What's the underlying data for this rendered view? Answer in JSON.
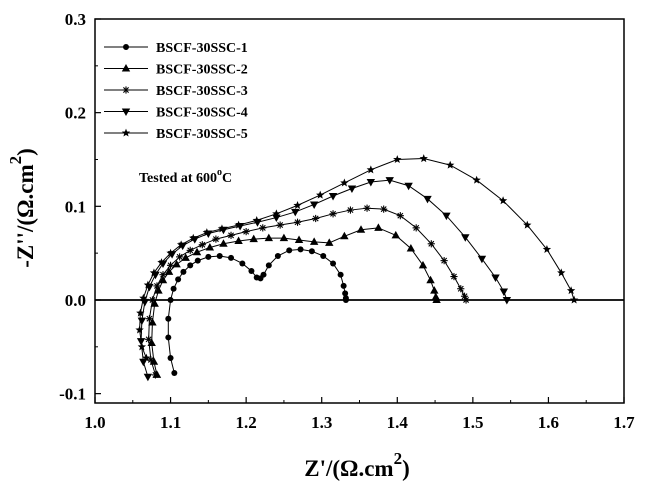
{
  "chart_data": {
    "type": "scatter",
    "xlabel": "Z'/(Ω.cm2)",
    "xlabel_main": "Z'/(Ω.cm",
    "xlabel_sup": "2",
    "xlabel_close": ")",
    "ylabel": "-Z''/(Ω.cm2)",
    "ylabel_main": "-Z''/(Ω.cm",
    "ylabel_sup": "2",
    "ylabel_close": ")",
    "xlim": [
      1.0,
      1.7
    ],
    "ylim": [
      -0.11,
      0.3
    ],
    "xticks": [
      "1.0",
      "1.1",
      "1.2",
      "1.3",
      "1.4",
      "1.5",
      "1.6",
      "1.7"
    ],
    "yticks": [
      "-0.1",
      "0.0",
      "0.1",
      "0.2",
      "0.3"
    ],
    "annotation": "Tested at 600°C",
    "annotation_main": "Tested at 600",
    "annotation_sup": "o",
    "annotation_tail": "C",
    "legend_position": "top-left",
    "series": [
      {
        "name": "BSCF-30SSC-1",
        "marker": "circle",
        "x": [
          1.105,
          1.1,
          1.097,
          1.097,
          1.1,
          1.104,
          1.11,
          1.117,
          1.126,
          1.136,
          1.15,
          1.165,
          1.18,
          1.195,
          1.207,
          1.214,
          1.219,
          1.223,
          1.23,
          1.242,
          1.257,
          1.272,
          1.287,
          1.302,
          1.315,
          1.325,
          1.329,
          1.331,
          1.332,
          1.332
        ],
        "y": [
          -0.078,
          -0.062,
          -0.04,
          -0.02,
          0.0,
          0.012,
          0.022,
          0.03,
          0.037,
          0.042,
          0.046,
          0.047,
          0.045,
          0.039,
          0.031,
          0.024,
          0.023,
          0.027,
          0.037,
          0.047,
          0.053,
          0.054,
          0.052,
          0.047,
          0.039,
          0.027,
          0.015,
          0.007,
          0.002,
          0.0
        ]
      },
      {
        "name": "BSCF-30SSC-2",
        "marker": "triangle-up",
        "x": [
          1.082,
          1.078,
          1.075,
          1.076,
          1.079,
          1.084,
          1.09,
          1.098,
          1.108,
          1.12,
          1.135,
          1.152,
          1.17,
          1.19,
          1.21,
          1.23,
          1.25,
          1.27,
          1.29,
          1.31,
          1.33,
          1.352,
          1.375,
          1.398,
          1.418,
          1.434,
          1.444,
          1.449,
          1.451,
          1.452
        ],
        "y": [
          -0.08,
          -0.066,
          -0.046,
          -0.024,
          -0.004,
          0.01,
          0.021,
          0.03,
          0.038,
          0.045,
          0.051,
          0.056,
          0.06,
          0.063,
          0.065,
          0.066,
          0.066,
          0.064,
          0.062,
          0.061,
          0.068,
          0.075,
          0.077,
          0.069,
          0.055,
          0.037,
          0.021,
          0.01,
          0.003,
          0.0
        ]
      },
      {
        "name": "BSCF-30SSC-3",
        "marker": "asterisk",
        "x": [
          1.08,
          1.074,
          1.071,
          1.072,
          1.076,
          1.082,
          1.09,
          1.1,
          1.112,
          1.126,
          1.142,
          1.16,
          1.18,
          1.2,
          1.222,
          1.245,
          1.268,
          1.292,
          1.315,
          1.338,
          1.36,
          1.382,
          1.404,
          1.425,
          1.445,
          1.462,
          1.475,
          1.484,
          1.489,
          1.491
        ],
        "y": [
          -0.08,
          -0.064,
          -0.042,
          -0.02,
          0.0,
          0.015,
          0.027,
          0.037,
          0.046,
          0.053,
          0.059,
          0.065,
          0.069,
          0.073,
          0.077,
          0.08,
          0.083,
          0.087,
          0.092,
          0.096,
          0.098,
          0.097,
          0.09,
          0.077,
          0.06,
          0.042,
          0.025,
          0.012,
          0.004,
          0.0
        ]
      },
      {
        "name": "BSCF-30SSC-4",
        "marker": "triangle-down",
        "x": [
          1.07,
          1.064,
          1.061,
          1.062,
          1.066,
          1.072,
          1.08,
          1.09,
          1.102,
          1.116,
          1.132,
          1.15,
          1.17,
          1.192,
          1.215,
          1.24,
          1.265,
          1.29,
          1.315,
          1.34,
          1.365,
          1.39,
          1.415,
          1.44,
          1.465,
          1.49,
          1.512,
          1.53,
          1.541,
          1.545
        ],
        "y": [
          -0.082,
          -0.066,
          -0.044,
          -0.022,
          -0.002,
          0.014,
          0.027,
          0.039,
          0.049,
          0.058,
          0.065,
          0.071,
          0.075,
          0.079,
          0.083,
          0.088,
          0.094,
          0.102,
          0.111,
          0.119,
          0.126,
          0.128,
          0.122,
          0.108,
          0.09,
          0.067,
          0.044,
          0.024,
          0.009,
          0.0
        ]
      },
      {
        "name": "BSCF-30SSC-5",
        "marker": "star",
        "x": [
          1.068,
          1.062,
          1.059,
          1.06,
          1.064,
          1.07,
          1.078,
          1.088,
          1.1,
          1.114,
          1.13,
          1.148,
          1.168,
          1.19,
          1.214,
          1.24,
          1.268,
          1.298,
          1.33,
          1.365,
          1.4,
          1.435,
          1.47,
          1.505,
          1.54,
          1.572,
          1.598,
          1.617,
          1.63,
          1.634
        ],
        "y": [
          -0.062,
          -0.05,
          -0.032,
          -0.014,
          0.002,
          0.016,
          0.029,
          0.04,
          0.05,
          0.059,
          0.066,
          0.072,
          0.076,
          0.08,
          0.085,
          0.092,
          0.101,
          0.112,
          0.125,
          0.139,
          0.15,
          0.151,
          0.144,
          0.128,
          0.106,
          0.08,
          0.054,
          0.029,
          0.01,
          0.0
        ]
      }
    ]
  }
}
